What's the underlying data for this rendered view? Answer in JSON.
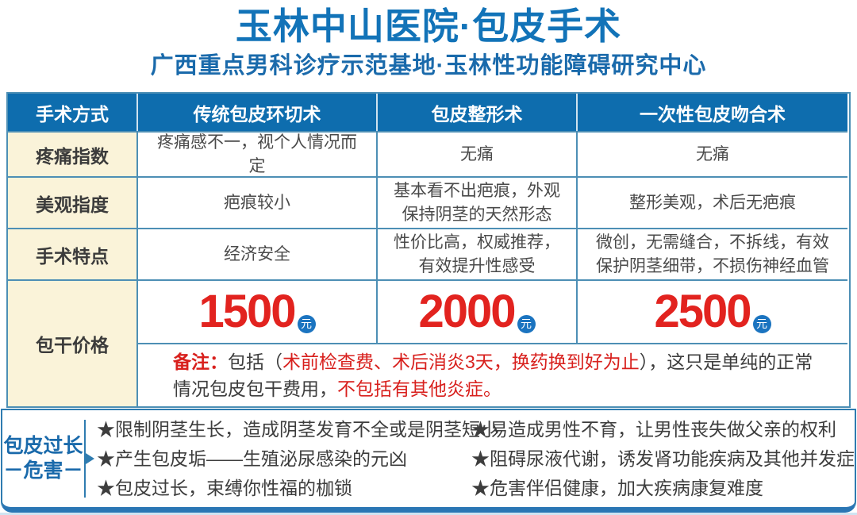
{
  "header": {
    "title": "玉林中山医院·包皮手术",
    "subtitle": "广西重点男科诊疗示范基地·玉林性功能障碍研究中心"
  },
  "colors": {
    "header_blue": "#0e6dae",
    "title_blue": "#1273b8",
    "subtitle_blue": "#1a6aab",
    "accent_red": "#e2231f",
    "note_red": "#d8201d",
    "label_cream": "#faf3d9",
    "border_blue": "#4d8fb5",
    "bottom_bar_blue": "#2a76b4",
    "dark_text": "#3d3d3d"
  },
  "table": {
    "header": [
      "手术方式",
      "传统包皮环切术",
      "包皮整形术",
      "一次性包皮吻合术"
    ],
    "rows": [
      {
        "label": "疼痛指数",
        "cells": [
          "疼痛感不一，视个人情况而定",
          "无痛",
          "无痛"
        ]
      },
      {
        "label": "美观指度",
        "cells": [
          "疤痕较小",
          "基本看不出疤痕，外观保持阴茎的天然形态",
          "整形美观，术后无疤痕"
        ]
      },
      {
        "label": "手术特点",
        "cells": [
          "经济安全",
          "性价比高，权威推荐，有效提升性感受",
          "微创，无需缝合，不拆线，有效保护阴茎细带，不损伤神经血管"
        ]
      }
    ],
    "price_row": {
      "label": "包干价格",
      "prices": [
        {
          "amount": "1500",
          "unit": "元"
        },
        {
          "amount": "2000",
          "unit": "元"
        },
        {
          "amount": "2500",
          "unit": "元"
        }
      ]
    },
    "note": {
      "label": "备注：",
      "t1": "包括（",
      "r1": "术前检查费、术后消炎3天，换药换到好为止",
      "t2": "），这只是单纯的正常情况包皮包干费用，",
      "r2": "不包括有其他炎症。"
    }
  },
  "hazards": {
    "label_line1": "包皮过长",
    "label_line2": "－危害－",
    "left": [
      "★限制阴茎生长，造成阴茎发育不全或是阴茎短小",
      "★产生包皮垢——生殖泌尿感染的元凶",
      "★包皮过长，束缚你性福的枷锁"
    ],
    "right": [
      "★易造成男性不育，让男性丧失做父亲的权利",
      "★阻碍尿液代谢，诱发肾功能疾病及其他并发症",
      "★危害伴侣健康，加大疾病康复难度"
    ]
  }
}
